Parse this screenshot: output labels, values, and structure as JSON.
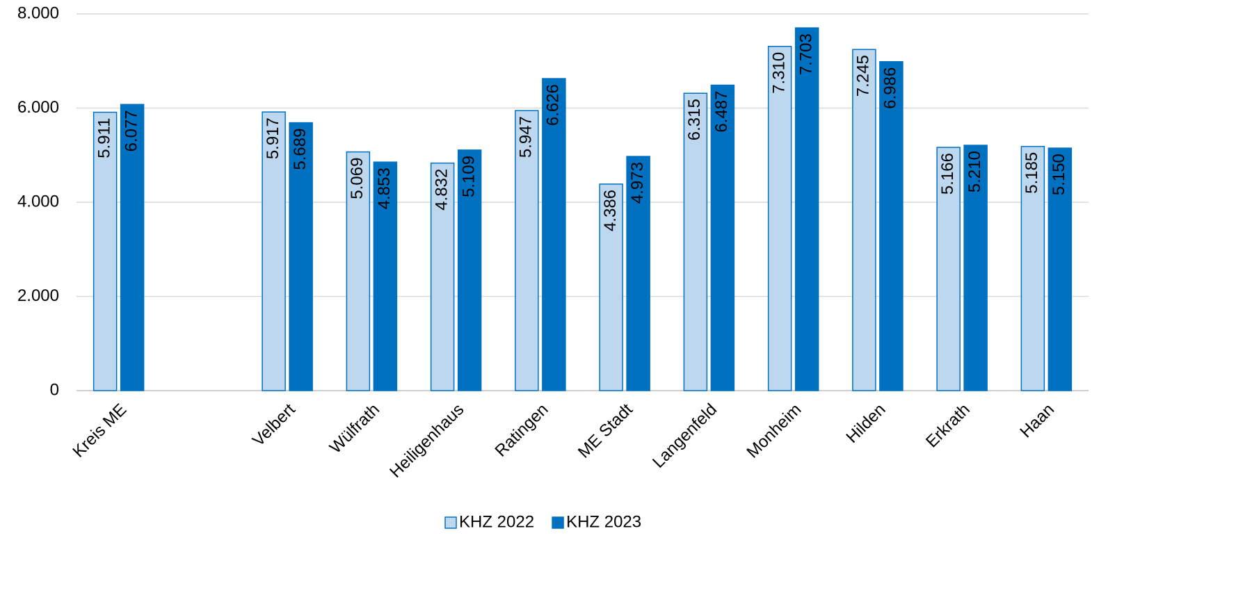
{
  "chart_data": {
    "type": "bar",
    "categories": [
      "Kreis ME",
      null,
      "Velbert",
      "Wülfrath",
      "Heiligenhaus",
      "Ratingen",
      "ME Stadt",
      "Langenfeld",
      "Monheim",
      "Hilden",
      "Erkrath",
      "Haan"
    ],
    "series": [
      {
        "name": "KHZ 2022",
        "color": "#bdd7ee",
        "values": [
          5911,
          null,
          5917,
          5069,
          4832,
          5947,
          4386,
          6315,
          7310,
          7245,
          5166,
          5185
        ],
        "value_labels": [
          "5.911",
          null,
          "5.917",
          "5.069",
          "4.832",
          "5.947",
          "4.386",
          "6.315",
          "7.310",
          "7.245",
          "5.166",
          "5.185"
        ]
      },
      {
        "name": "KHZ 2023",
        "color": "#0070c0",
        "values": [
          6077,
          null,
          5689,
          4853,
          5109,
          6626,
          4973,
          6487,
          7703,
          6986,
          5210,
          5150
        ],
        "value_labels": [
          "6.077",
          null,
          "5.689",
          "4.853",
          "5.109",
          "6.626",
          "4.973",
          "6.487",
          "7.703",
          "6.986",
          "5.210",
          "5.150"
        ]
      }
    ],
    "ylim": [
      0,
      8000
    ],
    "yticks": [
      0,
      {
        "value": 2000,
        "label": "2.000"
      },
      {
        "value": 4000,
        "label": "4.000"
      },
      {
        "value": 6000,
        "label": "6.000"
      },
      {
        "value": 8000,
        "label": "8.000"
      }
    ],
    "grid": true,
    "legend": "bottom"
  }
}
